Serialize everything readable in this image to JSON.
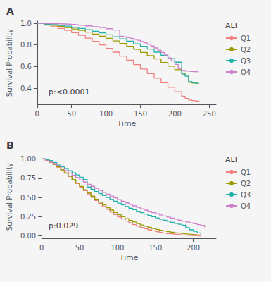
{
  "chart_data": [
    {
      "type": "step",
      "title": "A",
      "ylabel": "Survival Probability",
      "xlabel": "Time",
      "annotation": "p:<0.0001",
      "legend_title": "ALI",
      "legend": "right",
      "grid": false,
      "xlim": [
        0,
        260
      ],
      "ylim": [
        0.25,
        1.02
      ],
      "xticks": [
        0,
        50,
        100,
        150,
        200,
        250
      ],
      "yticks": [
        0.4,
        0.6,
        0.8,
        {
          "value": 1.0,
          "label": "1.0"
        }
      ],
      "series": [
        {
          "name": "Q1",
          "color": "#F08080",
          "x": [
            0,
            10,
            20,
            30,
            40,
            50,
            60,
            70,
            80,
            90,
            100,
            110,
            120,
            130,
            140,
            150,
            160,
            170,
            180,
            190,
            200,
            210,
            215,
            220,
            225,
            230,
            235
          ],
          "values": [
            1.0,
            0.984,
            0.968,
            0.952,
            0.934,
            0.913,
            0.889,
            0.862,
            0.833,
            0.801,
            0.768,
            0.733,
            0.696,
            0.658,
            0.618,
            0.577,
            0.535,
            0.492,
            0.45,
            0.408,
            0.366,
            0.325,
            0.305,
            0.29,
            0.285,
            0.28,
            0.275
          ]
        },
        {
          "name": "Q2",
          "color": "#9B9B00",
          "x": [
            0,
            10,
            20,
            30,
            40,
            50,
            60,
            70,
            80,
            90,
            100,
            110,
            120,
            130,
            140,
            150,
            160,
            170,
            180,
            190,
            200,
            210,
            215,
            220,
            225,
            230,
            235
          ],
          "values": [
            1.0,
            0.991,
            0.982,
            0.972,
            0.961,
            0.948,
            0.934,
            0.918,
            0.9,
            0.881,
            0.86,
            0.837,
            0.813,
            0.787,
            0.76,
            0.731,
            0.701,
            0.67,
            0.637,
            0.604,
            0.57,
            0.538,
            0.52,
            0.453,
            0.447,
            0.443,
            0.44
          ]
        },
        {
          "name": "Q3",
          "color": "#20B2AA",
          "x": [
            0,
            10,
            20,
            30,
            40,
            50,
            60,
            70,
            80,
            90,
            100,
            110,
            120,
            130,
            140,
            150,
            160,
            170,
            180,
            190,
            200,
            210,
            215,
            220,
            225,
            230,
            235
          ],
          "values": [
            1.0,
            0.994,
            0.988,
            0.981,
            0.973,
            0.963,
            0.952,
            0.94,
            0.926,
            0.911,
            0.894,
            0.876,
            0.856,
            0.834,
            0.811,
            0.787,
            0.761,
            0.733,
            0.704,
            0.673,
            0.64,
            0.53,
            0.51,
            0.46,
            0.45,
            0.445,
            0.442
          ]
        },
        {
          "name": "Q4",
          "color": "#CC80CC",
          "x": [
            0,
            10,
            20,
            30,
            40,
            50,
            60,
            70,
            80,
            90,
            100,
            110,
            120,
            125,
            130,
            135,
            140,
            145,
            150,
            155,
            160,
            165,
            170,
            175,
            180,
            185,
            190,
            195,
            200,
            205,
            210,
            215,
            220,
            225,
            230,
            235
          ],
          "values": [
            1.0,
            0.998,
            0.996,
            0.994,
            0.991,
            0.987,
            0.982,
            0.976,
            0.969,
            0.96,
            0.95,
            0.938,
            0.88,
            0.875,
            0.868,
            0.86,
            0.852,
            0.843,
            0.832,
            0.82,
            0.806,
            0.79,
            0.772,
            0.752,
            0.73,
            0.706,
            0.68,
            0.652,
            0.62,
            0.58,
            0.565,
            0.558,
            0.555,
            0.553,
            0.551,
            0.55
          ]
        }
      ]
    },
    {
      "type": "step",
      "title": "B",
      "ylabel": "Survival Probability",
      "xlabel": "Time",
      "annotation": "p:0.029",
      "legend_title": "ALI",
      "legend": "right",
      "grid": false,
      "xlim": [
        0,
        230
      ],
      "ylim": [
        -0.03,
        1.05
      ],
      "xticks": [
        0,
        50,
        100,
        150,
        200
      ],
      "yticks": [
        {
          "value": 0.0,
          "label": "0.00"
        },
        0.25,
        {
          "value": 0.5,
          "label": "0.50"
        },
        0.75,
        {
          "value": 1.0,
          "label": "1.00"
        }
      ],
      "series": [
        {
          "name": "Q1",
          "color": "#F08080",
          "x": [
            0,
            5,
            10,
            15,
            20,
            25,
            30,
            35,
            40,
            45,
            50,
            55,
            60,
            65,
            70,
            75,
            80,
            85,
            90,
            95,
            100,
            105,
            110,
            115,
            120,
            125,
            130,
            135,
            140,
            145,
            150,
            155,
            160,
            165,
            170,
            175,
            180,
            185,
            190,
            195,
            200,
            205,
            210
          ],
          "values": [
            1.0,
            0.978,
            0.956,
            0.928,
            0.894,
            0.856,
            0.815,
            0.772,
            0.727,
            0.681,
            0.635,
            0.59,
            0.546,
            0.503,
            0.461,
            0.421,
            0.382,
            0.346,
            0.311,
            0.279,
            0.248,
            0.22,
            0.194,
            0.17,
            0.148,
            0.128,
            0.11,
            0.094,
            0.08,
            0.067,
            0.056,
            0.046,
            0.038,
            0.031,
            0.025,
            0.02,
            0.015,
            0.011,
            0.008,
            0.005,
            0.003,
            0.002,
            0.001
          ]
        },
        {
          "name": "Q2",
          "color": "#9B9B00",
          "x": [
            0,
            5,
            10,
            15,
            20,
            25,
            30,
            35,
            40,
            45,
            50,
            55,
            60,
            65,
            70,
            75,
            80,
            85,
            90,
            95,
            100,
            105,
            110,
            115,
            120,
            125,
            130,
            135,
            140,
            145,
            150,
            155,
            160,
            165,
            170,
            175,
            180,
            185,
            190,
            195,
            200,
            205,
            210
          ],
          "values": [
            1.0,
            0.98,
            0.958,
            0.93,
            0.897,
            0.86,
            0.82,
            0.777,
            0.733,
            0.688,
            0.643,
            0.6,
            0.558,
            0.517,
            0.477,
            0.439,
            0.403,
            0.368,
            0.336,
            0.305,
            0.276,
            0.25,
            0.225,
            0.202,
            0.181,
            0.161,
            0.143,
            0.127,
            0.112,
            0.098,
            0.086,
            0.075,
            0.065,
            0.056,
            0.048,
            0.04,
            0.034,
            0.028,
            0.023,
            0.019,
            0.015,
            0.012,
            0.009
          ]
        },
        {
          "name": "Q3",
          "color": "#20B2AA",
          "x": [
            0,
            5,
            10,
            15,
            20,
            25,
            30,
            35,
            40,
            45,
            50,
            55,
            60,
            65,
            70,
            75,
            80,
            85,
            90,
            95,
            100,
            105,
            110,
            115,
            120,
            125,
            130,
            135,
            140,
            145,
            150,
            155,
            160,
            165,
            170,
            175,
            180,
            185,
            190,
            195,
            200,
            205,
            210
          ],
          "values": [
            1.0,
            0.993,
            0.98,
            0.955,
            0.92,
            0.9,
            0.875,
            0.848,
            0.82,
            0.792,
            0.762,
            0.732,
            0.636,
            0.606,
            0.578,
            0.551,
            0.525,
            0.5,
            0.475,
            0.451,
            0.427,
            0.404,
            0.382,
            0.361,
            0.341,
            0.321,
            0.303,
            0.284,
            0.267,
            0.25,
            0.234,
            0.219,
            0.204,
            0.19,
            0.177,
            0.164,
            0.152,
            0.14,
            0.108,
            0.08,
            0.06,
            0.04,
            0.02
          ]
        },
        {
          "name": "Q4",
          "color": "#CC80CC",
          "x": [
            0,
            5,
            10,
            15,
            20,
            25,
            30,
            35,
            40,
            45,
            50,
            55,
            60,
            65,
            70,
            75,
            80,
            85,
            90,
            95,
            100,
            105,
            110,
            115,
            120,
            125,
            130,
            135,
            140,
            145,
            150,
            155,
            160,
            165,
            170,
            175,
            180,
            185,
            190,
            195,
            200,
            205,
            210,
            215
          ],
          "values": [
            1.0,
            0.976,
            0.96,
            0.94,
            0.912,
            0.882,
            0.85,
            0.818,
            0.787,
            0.757,
            0.728,
            0.7,
            0.672,
            0.645,
            0.618,
            0.592,
            0.567,
            0.542,
            0.518,
            0.495,
            0.473,
            0.451,
            0.43,
            0.41,
            0.391,
            0.372,
            0.354,
            0.336,
            0.32,
            0.303,
            0.288,
            0.273,
            0.259,
            0.245,
            0.231,
            0.218,
            0.205,
            0.193,
            0.181,
            0.169,
            0.158,
            0.148,
            0.138,
            0.112
          ]
        }
      ]
    }
  ]
}
